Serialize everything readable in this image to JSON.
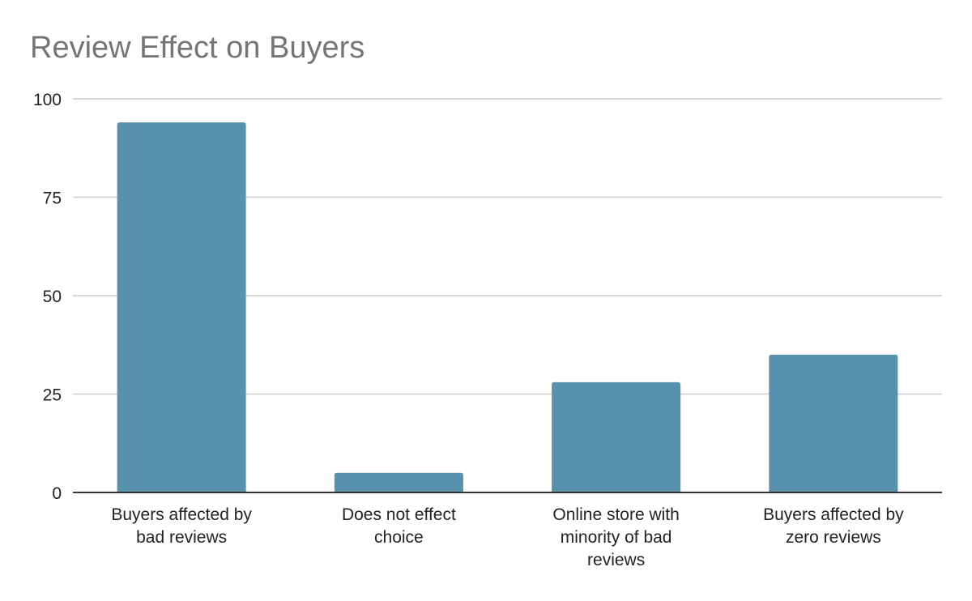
{
  "chart_data": {
    "type": "bar",
    "title": "Review Effect on Buyers",
    "categories": [
      [
        "Buyers affected by",
        "bad reviews"
      ],
      [
        "Does not effect",
        "choice"
      ],
      [
        "Online store with",
        "minority of bad",
        "reviews"
      ],
      [
        "Buyers affected by",
        "zero reviews"
      ]
    ],
    "values": [
      94,
      5,
      28,
      35
    ],
    "ylim": [
      0,
      100
    ],
    "yticks": [
      0,
      25,
      50,
      75,
      100
    ],
    "grid": true,
    "legend": "none",
    "colors": {
      "bar": "#5891ad",
      "grid": "#cccccc",
      "baseline": "#333333",
      "title": "#757575"
    }
  }
}
